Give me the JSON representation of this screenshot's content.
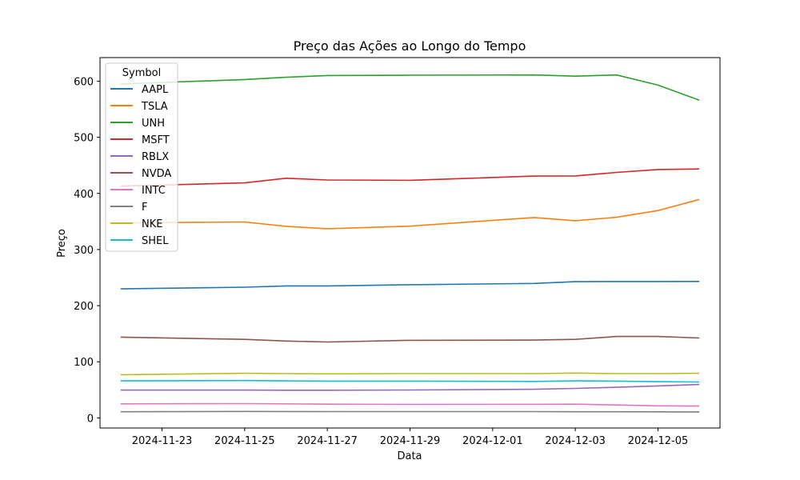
{
  "chart_data": {
    "type": "line",
    "title": "Preço das Ações ao Longo do Tempo",
    "xlabel": "Data",
    "ylabel": "Preço",
    "x": [
      "2024-11-22",
      "2024-11-25",
      "2024-11-26",
      "2024-11-27",
      "2024-11-29",
      "2024-12-02",
      "2024-12-03",
      "2024-12-04",
      "2024-12-05",
      "2024-12-06"
    ],
    "xticks": [
      "2024-11-23",
      "2024-11-25",
      "2024-11-27",
      "2024-11-29",
      "2024-12-01",
      "2024-12-03",
      "2024-12-05"
    ],
    "xlim": [
      "2024-11-21T12:00",
      "2024-12-06T12:00"
    ],
    "yticks": [
      0,
      100,
      200,
      300,
      400,
      500,
      600
    ],
    "ylim": [
      -18,
      642
    ],
    "grid": false,
    "legend": {
      "title": "Symbol",
      "position": "top-left"
    },
    "series": [
      {
        "name": "AAPL",
        "color": "#1f77b4",
        "values": [
          229.9,
          232.9,
          235.1,
          235.1,
          237.3,
          239.6,
          242.7,
          243.0,
          243.0,
          243.2
        ]
      },
      {
        "name": "TSLA",
        "color": "#ff7f0e",
        "values": [
          347.5,
          349.0,
          341.3,
          337.1,
          341.7,
          357.1,
          351.4,
          357.5,
          369.5,
          389.2
        ]
      },
      {
        "name": "UNH",
        "color": "#2ca02c",
        "values": [
          595.0,
          603.0,
          607.0,
          610.0,
          610.6,
          611.0,
          609.0,
          611.0,
          593.0,
          566.0
        ]
      },
      {
        "name": "MSFT",
        "color": "#d62728",
        "values": [
          413.0,
          418.8,
          427.0,
          423.9,
          423.4,
          430.9,
          431.2,
          437.4,
          442.6,
          443.6
        ]
      },
      {
        "name": "RBLX",
        "color": "#9467bd",
        "values": [
          49.5,
          49.5,
          49.3,
          49.3,
          49.7,
          51.0,
          52.5,
          54.5,
          57.0,
          59.5
        ]
      },
      {
        "name": "NVDA",
        "color": "#8c564b",
        "values": [
          144.0,
          140.0,
          136.9,
          135.3,
          138.3,
          138.6,
          140.0,
          145.1,
          145.1,
          142.4
        ]
      },
      {
        "name": "INTC",
        "color": "#e377c2",
        "values": [
          25.0,
          25.5,
          25.0,
          24.5,
          24.0,
          24.2,
          24.5,
          23.0,
          21.5,
          21.0
        ]
      },
      {
        "name": "F",
        "color": "#7f7f7f",
        "values": [
          11.0,
          11.5,
          11.3,
          11.2,
          11.2,
          11.2,
          11.0,
          10.9,
          10.8,
          10.7
        ]
      },
      {
        "name": "NKE",
        "color": "#bcbd22",
        "values": [
          77.0,
          79.5,
          79.0,
          78.5,
          79.0,
          79.0,
          80.0,
          79.0,
          79.0,
          79.5
        ]
      },
      {
        "name": "SHEL",
        "color": "#17becf",
        "values": [
          66.0,
          66.5,
          66.0,
          65.5,
          65.5,
          65.0,
          66.0,
          65.5,
          64.5,
          64.0
        ]
      }
    ]
  }
}
